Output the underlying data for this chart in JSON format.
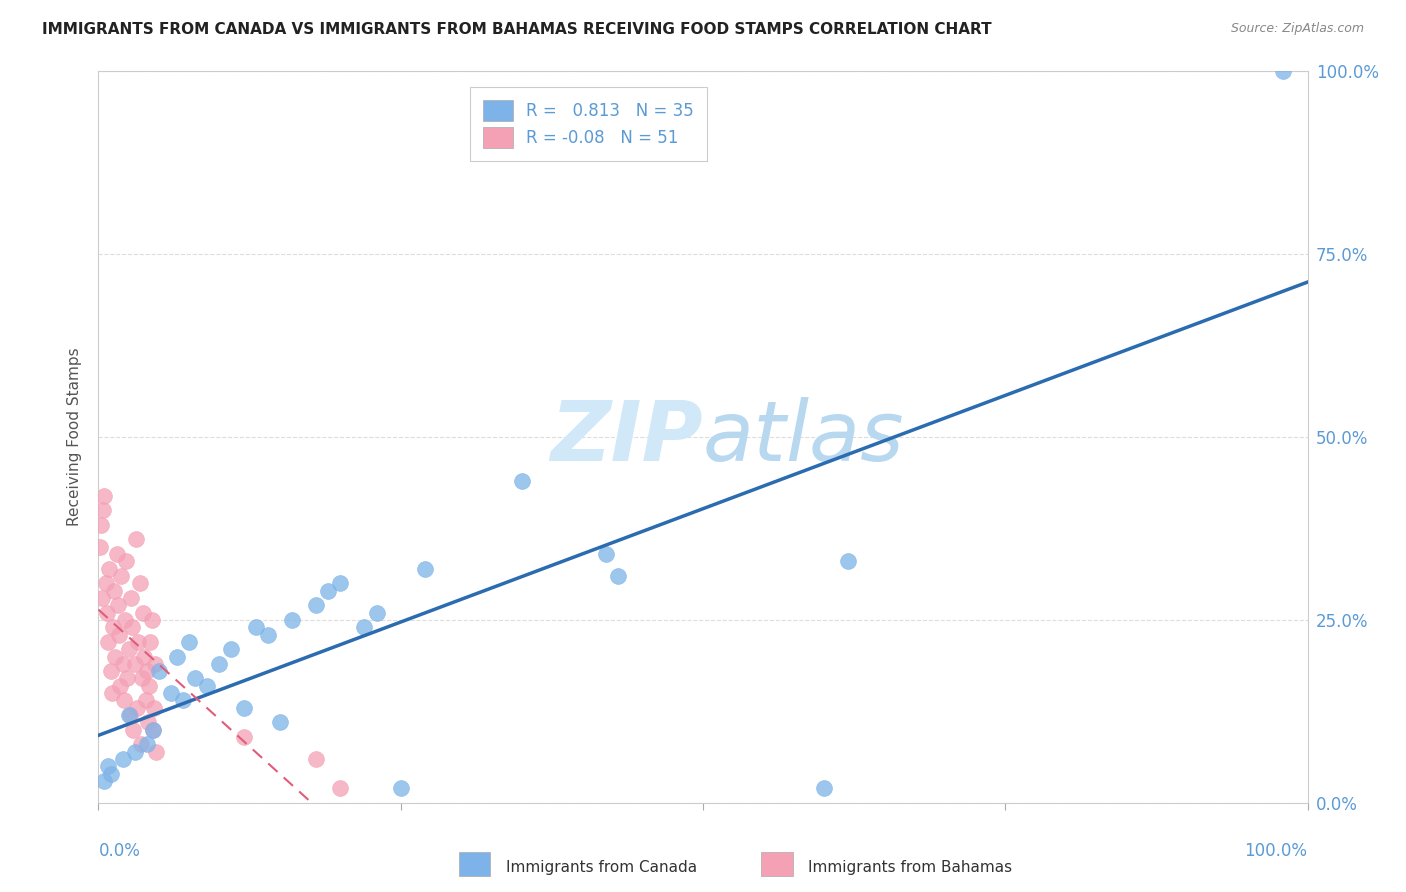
{
  "title": "IMMIGRANTS FROM CANADA VS IMMIGRANTS FROM BAHAMAS RECEIVING FOOD STAMPS CORRELATION CHART",
  "source": "Source: ZipAtlas.com",
  "ylabel": "Receiving Food Stamps",
  "ytick_labels": [
    "0.0%",
    "25.0%",
    "50.0%",
    "75.0%",
    "100.0%"
  ],
  "ytick_values": [
    0,
    0.25,
    0.5,
    0.75,
    1.0
  ],
  "canada_R": 0.813,
  "canada_N": 35,
  "bahamas_R": -0.08,
  "bahamas_N": 51,
  "canada_color": "#7db3e8",
  "bahamas_color": "#f4a0b5",
  "canada_line_color": "#2b6cb0",
  "bahamas_line_color": "#e05c7a",
  "background_color": "#ffffff",
  "grid_color": "#dddddd",
  "watermark_zip": "ZIP",
  "watermark_atlas": "atlas",
  "watermark_color": "#d0e8f8",
  "title_color": "#222222",
  "axis_label_color": "#5b9bd5",
  "canada_scatter_x": [
    0.005,
    0.008,
    0.01,
    0.02,
    0.025,
    0.03,
    0.04,
    0.045,
    0.05,
    0.06,
    0.065,
    0.07,
    0.075,
    0.08,
    0.09,
    0.1,
    0.11,
    0.12,
    0.13,
    0.14,
    0.15,
    0.16,
    0.18,
    0.19,
    0.2,
    0.22,
    0.23,
    0.25,
    0.27,
    0.35,
    0.42,
    0.43,
    0.6,
    0.62,
    0.98
  ],
  "canada_scatter_y": [
    0.03,
    0.05,
    0.04,
    0.06,
    0.12,
    0.07,
    0.08,
    0.1,
    0.18,
    0.15,
    0.2,
    0.14,
    0.22,
    0.17,
    0.16,
    0.19,
    0.21,
    0.13,
    0.24,
    0.23,
    0.11,
    0.25,
    0.27,
    0.29,
    0.3,
    0.24,
    0.26,
    0.02,
    0.32,
    0.44,
    0.34,
    0.31,
    0.02,
    0.33,
    1.0
  ],
  "bahamas_scatter_x": [
    0.001,
    0.002,
    0.003,
    0.004,
    0.005,
    0.006,
    0.007,
    0.008,
    0.009,
    0.01,
    0.011,
    0.012,
    0.013,
    0.014,
    0.015,
    0.016,
    0.017,
    0.018,
    0.019,
    0.02,
    0.021,
    0.022,
    0.023,
    0.024,
    0.025,
    0.026,
    0.027,
    0.028,
    0.029,
    0.03,
    0.031,
    0.032,
    0.033,
    0.034,
    0.035,
    0.036,
    0.037,
    0.038,
    0.039,
    0.04,
    0.041,
    0.042,
    0.043,
    0.044,
    0.045,
    0.046,
    0.047,
    0.048,
    0.12,
    0.18,
    0.2
  ],
  "bahamas_scatter_y": [
    0.35,
    0.38,
    0.28,
    0.4,
    0.42,
    0.3,
    0.26,
    0.22,
    0.32,
    0.18,
    0.15,
    0.24,
    0.29,
    0.2,
    0.34,
    0.27,
    0.23,
    0.16,
    0.31,
    0.19,
    0.14,
    0.25,
    0.33,
    0.17,
    0.21,
    0.12,
    0.28,
    0.24,
    0.1,
    0.19,
    0.36,
    0.13,
    0.22,
    0.3,
    0.08,
    0.17,
    0.26,
    0.2,
    0.14,
    0.18,
    0.11,
    0.16,
    0.22,
    0.25,
    0.1,
    0.13,
    0.19,
    0.07,
    0.09,
    0.06,
    0.02
  ]
}
